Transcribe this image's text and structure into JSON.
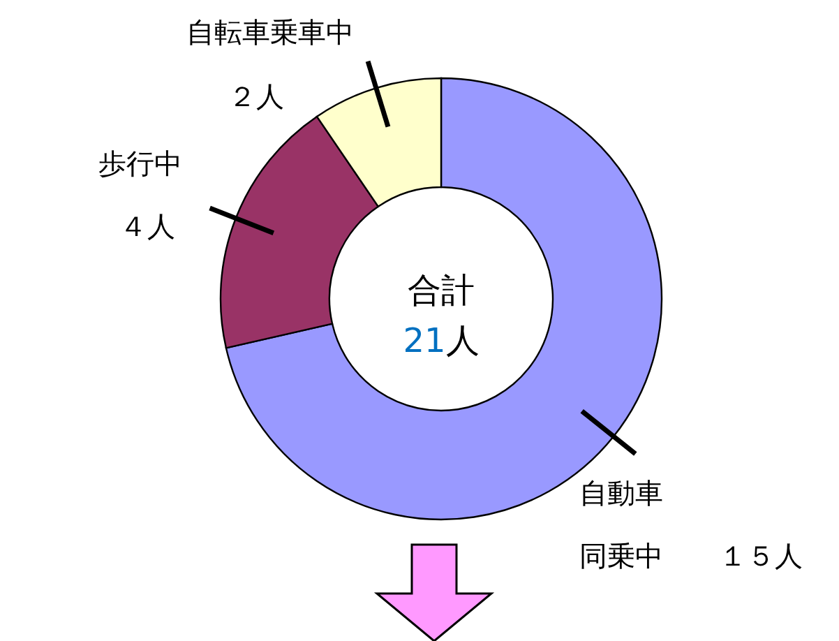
{
  "chart_data": {
    "type": "donut",
    "categories": [
      "自動車同乗中",
      "歩行中",
      "自転車乗車中"
    ],
    "values": [
      15,
      4,
      2
    ],
    "colors": [
      "#9999ff",
      "#993366",
      "#ffffcc"
    ],
    "value_labels": [
      "１５人",
      "４人",
      "２人"
    ],
    "annotations": [
      "合計",
      "21人"
    ]
  }
}
